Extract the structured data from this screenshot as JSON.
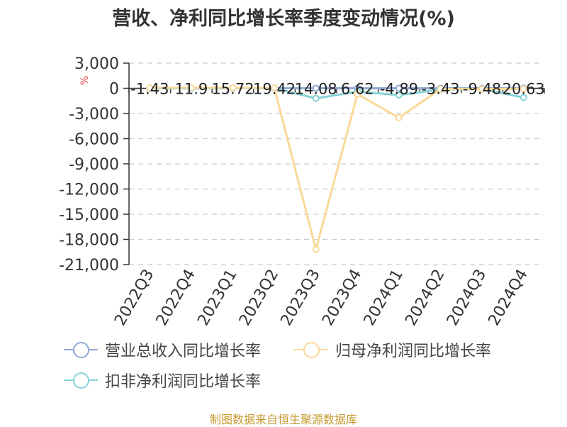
{
  "title": "营收、净利同比增长率季度变动情况(%)",
  "y_unit": "%",
  "footer": "制图数据来自恒生聚源数据库",
  "chart_data": {
    "type": "line",
    "categories": [
      "2022Q3",
      "2022Q4",
      "2023Q1",
      "2023Q2",
      "2023Q3",
      "2023Q4",
      "2024Q1",
      "2024Q2",
      "2024Q3",
      "2024Q4"
    ],
    "ylim": [
      -21000,
      3000
    ],
    "yticks": [
      3000,
      0,
      -3000,
      -6000,
      -9000,
      -12000,
      -15000,
      -18000,
      -21000
    ],
    "ytick_labels": [
      "3,000",
      "0",
      "-3,000",
      "-6,000",
      "-9,000",
      "-12,000",
      "-15,000",
      "-18,000",
      "-21,000"
    ],
    "grid": "dashed horizontal",
    "series": [
      {
        "name": "营业总收入同比增长率",
        "color": "#8fa8d4",
        "values": [
          -1.43,
          11.9,
          15.72,
          19.42,
          14.08,
          6.62,
          -4.89,
          -3.43,
          -9.48,
          20.63
        ],
        "labels": [
          "-1.43",
          "11.9",
          "15.72",
          "19.42",
          "14.08",
          "6.62",
          "-4.89",
          "-3.43",
          "-9.48",
          "20.63"
        ]
      },
      {
        "name": "归母净利润同比增长率",
        "color": "#f9d99a",
        "values": [
          50,
          80,
          60,
          40,
          -19200,
          -700,
          -3500,
          -100,
          -80,
          -60
        ]
      },
      {
        "name": "扣非净利润同比增长率",
        "color": "#86d2d6",
        "values": [
          20,
          50,
          30,
          10,
          -1200,
          -400,
          -800,
          -150,
          -100,
          -1100
        ]
      }
    ],
    "legend": "bottom"
  }
}
